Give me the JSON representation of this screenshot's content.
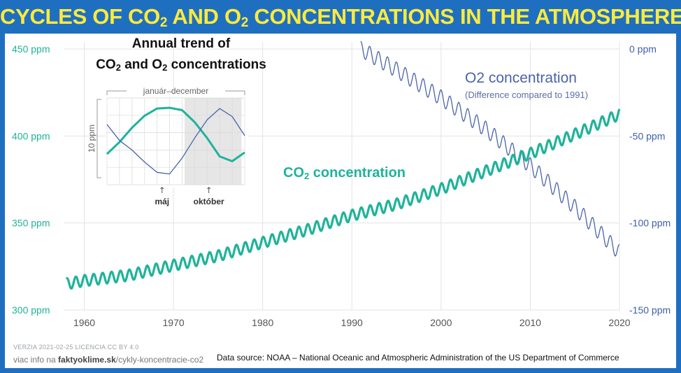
{
  "title": {
    "part1": "CYCLES OF CO",
    "sub1": "2",
    "part2": " AND O",
    "sub2": "2",
    "part3": " CONCENTRATIONS IN THE ATMOSPHERE"
  },
  "colors": {
    "background": "#1f6fc1",
    "title": "#ffeb3b",
    "co2": "#1fb39a",
    "o2": "#4a64a8",
    "grid": "#e3e3e3"
  },
  "chart_data": [
    {
      "type": "line",
      "title": "",
      "xlabel": "",
      "ylabel_left": "",
      "ylabel_right": "",
      "xlim": [
        1958,
        2020
      ],
      "ylim_left": [
        300,
        450
      ],
      "ylim_right": [
        -150,
        0
      ],
      "x_ticks": [
        1960,
        1970,
        1980,
        1990,
        2000,
        2010,
        2020
      ],
      "y_ticks_left": [
        "300 ppm",
        "350 ppm",
        "400 ppm",
        "450 ppm"
      ],
      "y_ticks_left_values": [
        300,
        350,
        400,
        450
      ],
      "y_ticks_right": [
        "-150 ppm",
        "-100 ppm",
        "-50 ppm",
        "0 ppm"
      ],
      "y_ticks_right_values": [
        -150,
        -100,
        -50,
        0
      ],
      "grid": true,
      "series": [
        {
          "name": "CO2 concentration",
          "axis": "left",
          "seasonal_amplitude": 3.2,
          "trend_points": [
            [
              1958,
              315
            ],
            [
              1960,
              316.9
            ],
            [
              1965,
              320.0
            ],
            [
              1970,
              325.7
            ],
            [
              1975,
              331.1
            ],
            [
              1980,
              338.8
            ],
            [
              1985,
              346.1
            ],
            [
              1990,
              354.4
            ],
            [
              1995,
              360.8
            ],
            [
              2000,
              369.6
            ],
            [
              2005,
              379.8
            ],
            [
              2010,
              389.9
            ],
            [
              2015,
              401.0
            ],
            [
              2020,
              412.5
            ]
          ]
        },
        {
          "name": "O2 concentration",
          "axis": "right",
          "seasonal_amplitude": 4.5,
          "trend_points": [
            [
              1991,
              0
            ],
            [
              1995,
              -12
            ],
            [
              2000,
              -28
            ],
            [
              2005,
              -46
            ],
            [
              2010,
              -67
            ],
            [
              2015,
              -91
            ],
            [
              2020,
              -117
            ]
          ]
        }
      ]
    },
    {
      "type": "line",
      "title": "Annual trend of CO2 and O2 concentrations",
      "xlabel": "január–december",
      "ylabel": "10 ppm",
      "highlight": [
        "máj",
        "október"
      ],
      "series": [
        {
          "name": "CO2",
          "values": [
            0.35,
            0.5,
            0.68,
            0.83,
            0.92,
            0.93,
            0.9,
            0.75,
            0.55,
            0.32,
            0.26,
            0.37
          ]
        },
        {
          "name": "O2",
          "values": [
            0.72,
            0.52,
            0.4,
            0.25,
            0.12,
            0.1,
            0.3,
            0.55,
            0.78,
            0.92,
            0.82,
            0.58
          ]
        }
      ]
    }
  ],
  "labels": {
    "inset_title_line1": "Annual trend of",
    "inset_title_co": "CO",
    "inset_title_sub1": "2",
    "inset_title_mid": " and O",
    "inset_title_sub2": "2",
    "inset_title_end": " concentrations",
    "inset_period": "január–december",
    "inset_ylabel": "10 ppm",
    "inset_may": "máj",
    "inset_october": "október",
    "co2_main": "CO",
    "co2_sub": "2",
    "co2_rest": " concentration",
    "o2_label": "O2 concentration",
    "o2_note": "(Difference compared to 1991)"
  },
  "footer": {
    "version": "VERZIA 2021-02-25   LICENCIA CC BY 4.0",
    "more_info_prefix": "viac info na ",
    "more_info_site": "faktyoklime.sk",
    "more_info_path": "/cykly-koncentracie-co2",
    "source": "Data source: NOAA – National Oceanic and Atmospheric Administration of the US Department of Commerce"
  }
}
